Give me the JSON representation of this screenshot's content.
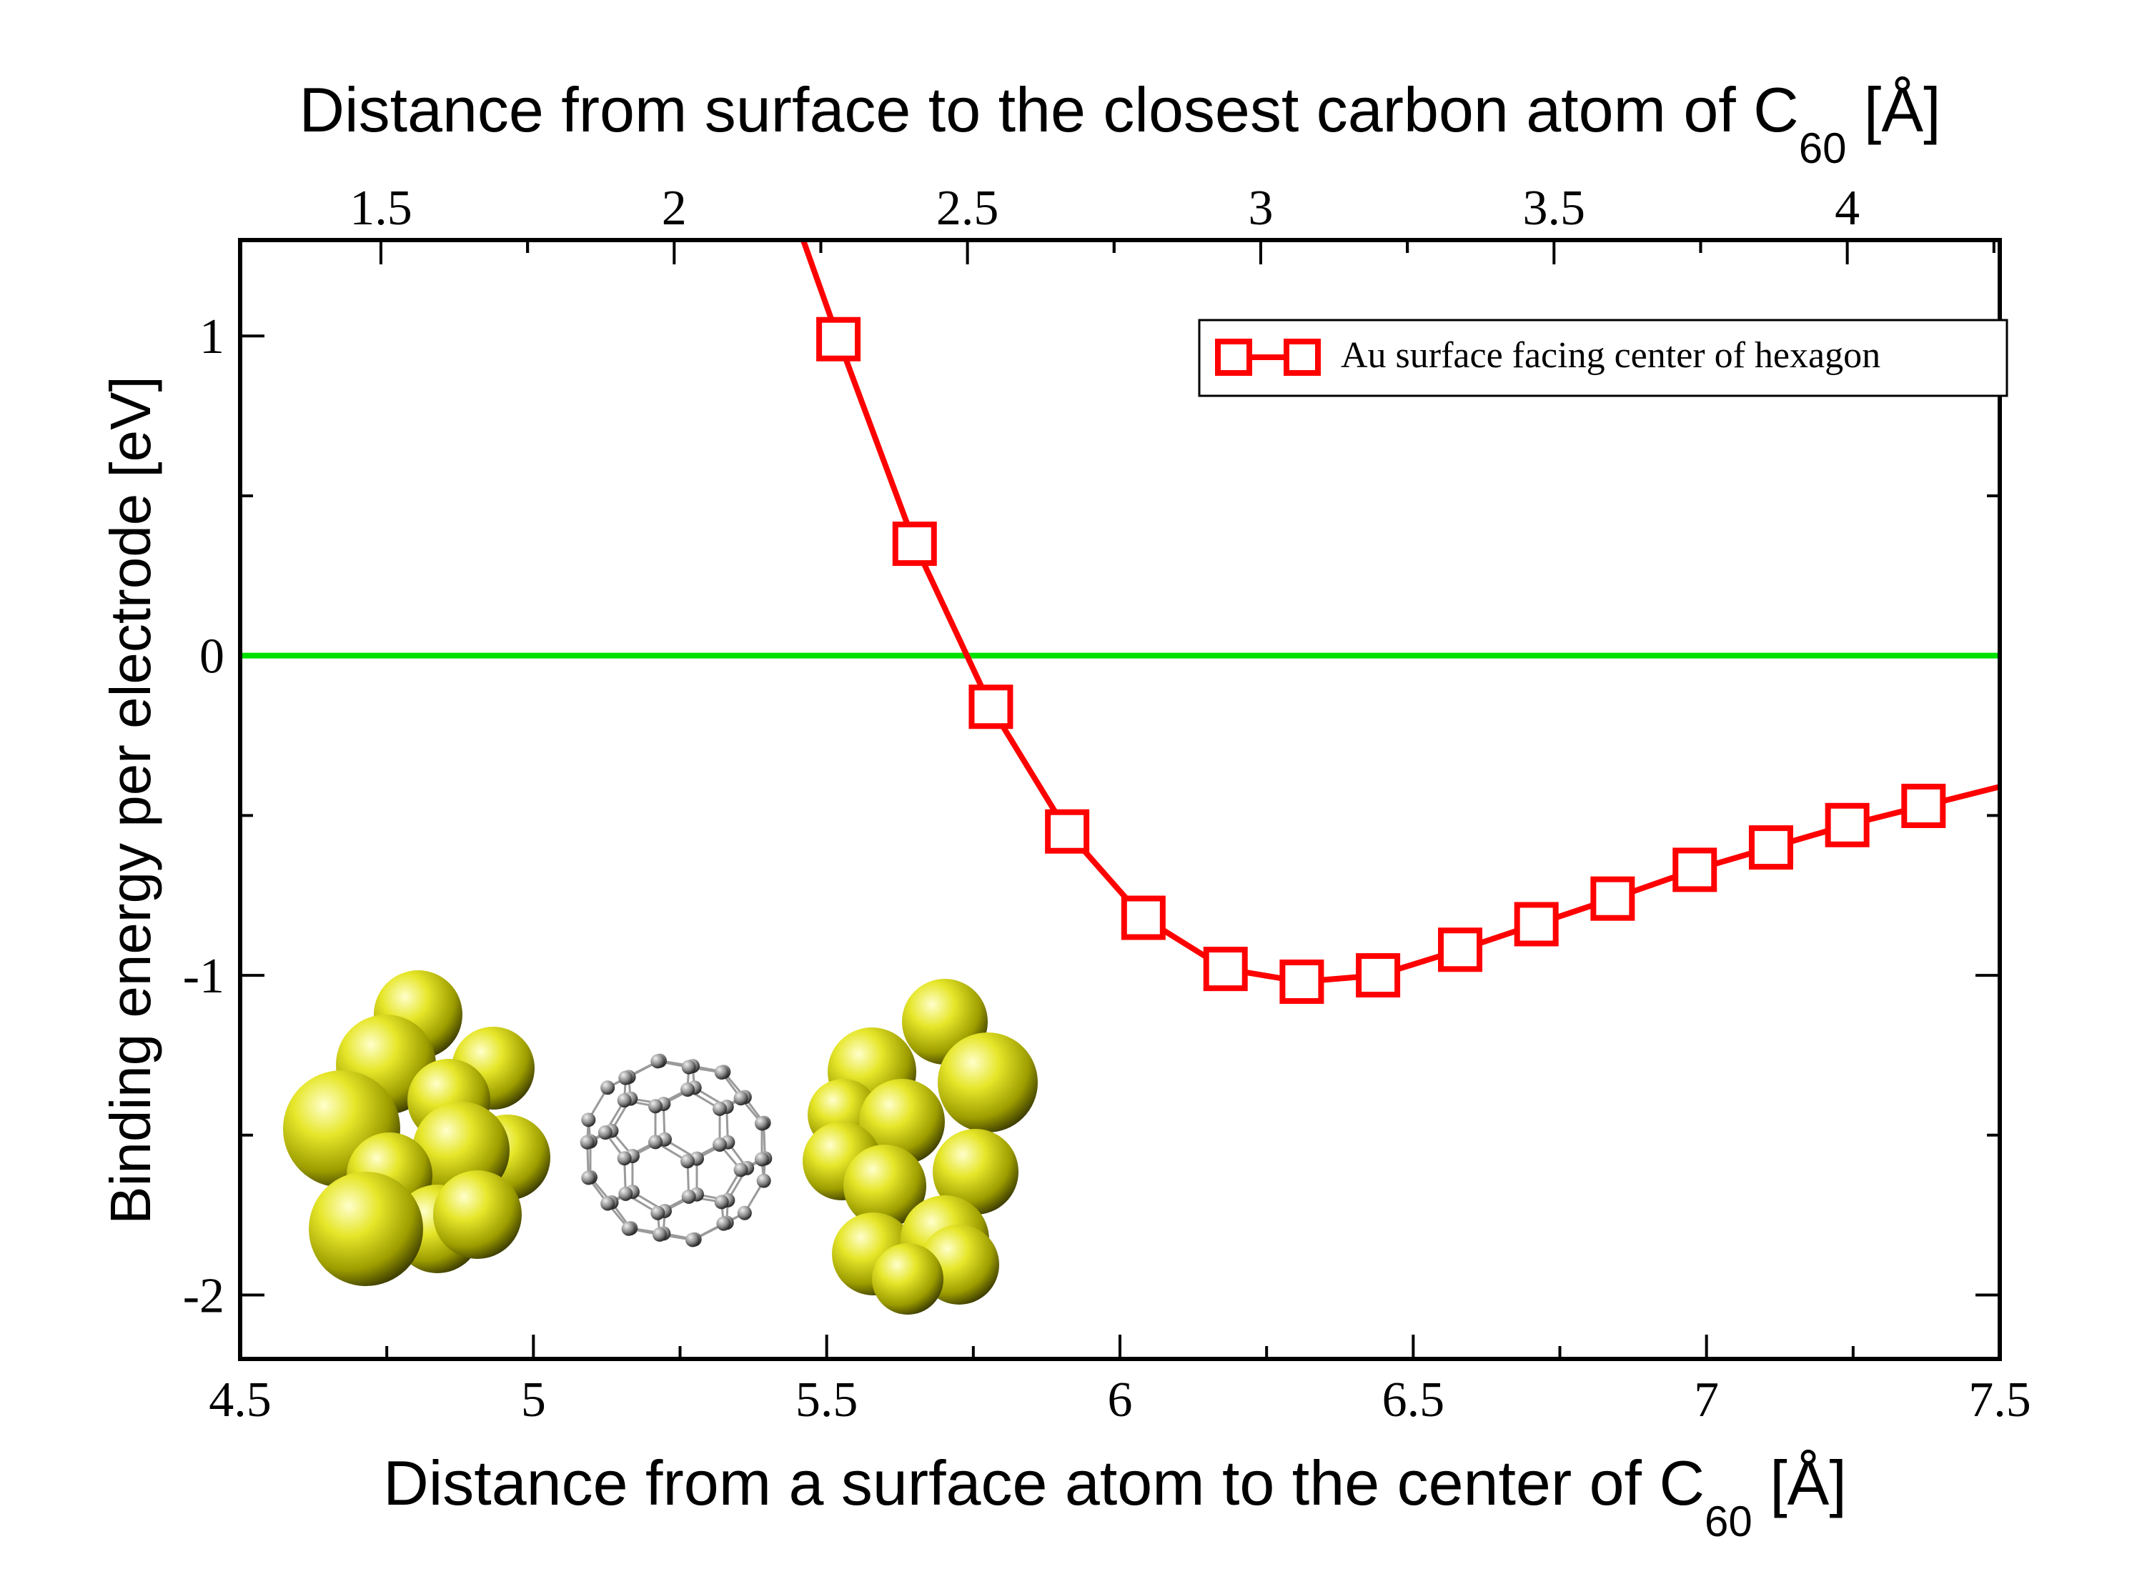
{
  "chart_data": {
    "type": "line",
    "xlabel_main": "Distance from a surface atom to the center of C",
    "xlabel_sub": "60",
    "xlabel_unit": " [Å]",
    "x2label_main": "Distance from surface to the closest carbon atom of C",
    "x2label_sub": "60",
    "x2label_unit": " [Å]",
    "ylabel": "Binding energy per electrode [eV]",
    "xlim": [
      4.5,
      7.5
    ],
    "ylim": [
      -2.2,
      1.3
    ],
    "x_ticks": [
      {
        "v": 4.5,
        "label": "4.5"
      },
      {
        "v": 5,
        "label": "5"
      },
      {
        "v": 5.5,
        "label": "5.5"
      },
      {
        "v": 6,
        "label": "6"
      },
      {
        "v": 6.5,
        "label": "6.5"
      },
      {
        "v": 7,
        "label": "7"
      },
      {
        "v": 7.5,
        "label": "7.5"
      }
    ],
    "x2_offset": 3.24,
    "x2_ticks": [
      {
        "v": 1.5,
        "label": "1.5"
      },
      {
        "v": 2,
        "label": "2"
      },
      {
        "v": 2.5,
        "label": "2.5"
      },
      {
        "v": 3,
        "label": "3"
      },
      {
        "v": 3.5,
        "label": "3.5"
      },
      {
        "v": 4,
        "label": "4"
      }
    ],
    "y_ticks": [
      {
        "v": 1,
        "label": "1"
      },
      {
        "v": 0,
        "label": "0"
      },
      {
        "v": -1,
        "label": "-1"
      },
      {
        "v": -2,
        "label": "-2"
      }
    ],
    "series": [
      {
        "name": "Au surface facing center of hexagon",
        "color": "#ff0000",
        "marker": "open-square",
        "line_x": [
          5.46,
          5.52,
          5.65,
          5.78,
          5.91,
          6.04,
          6.18,
          6.31,
          6.44,
          6.58,
          6.71,
          6.84,
          6.98,
          7.11,
          7.24,
          7.37,
          7.5
        ],
        "line_y": [
          1.3,
          0.99,
          0.35,
          -0.16,
          -0.55,
          -0.82,
          -0.98,
          -1.02,
          -1.0,
          -0.92,
          -0.84,
          -0.76,
          -0.67,
          -0.6,
          -0.53,
          -0.47,
          -0.41
        ],
        "x": [
          5.52,
          5.65,
          5.78,
          5.91,
          6.04,
          6.18,
          6.31,
          6.44,
          6.58,
          6.71,
          6.84,
          6.98,
          7.11,
          7.24,
          7.37
        ],
        "y": [
          0.99,
          0.35,
          -0.16,
          -0.55,
          -0.82,
          -0.98,
          -1.02,
          -1.0,
          -0.92,
          -0.84,
          -0.76,
          -0.67,
          -0.6,
          -0.53,
          -0.47
        ]
      }
    ],
    "reference_line": {
      "y": 0,
      "color": "#00e000"
    },
    "legend_position": "top-right",
    "inset_image": "Au-C60-Au junction illustration"
  }
}
